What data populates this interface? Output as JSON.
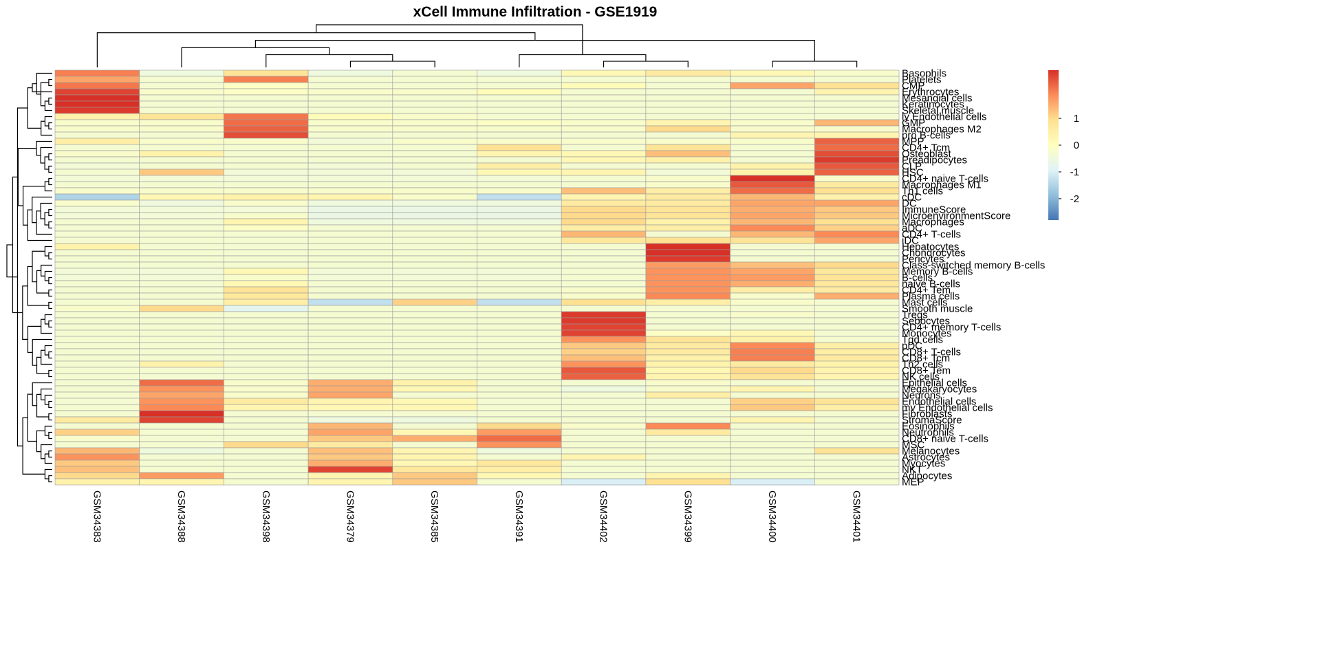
{
  "chart_data": {
    "type": "heatmap",
    "title": "xCell Immune Infiltration - GSE1919",
    "columns": [
      "GSM34383",
      "GSM34388",
      "GSM34398",
      "GSM34379",
      "GSM34385",
      "GSM34391",
      "GSM34402",
      "GSM34399",
      "GSM34400",
      "GSM34401"
    ],
    "rows": [
      "Basophils",
      "Platelets",
      "CMP",
      "Erythrocytes",
      "Mesangial cells",
      "Keratinocytes",
      "Skeletal muscle",
      "ly Endothelial cells",
      "GMP",
      "Macrophages M2",
      "pro B-cells",
      "MPP",
      "CD4+ Tcm",
      "Osteoblast",
      "Preadipocytes",
      "CLP",
      "HSC",
      "CD4+ naive T-cells",
      "Macrophages M1",
      "Th1 cells",
      "cDC",
      "DC",
      "ImmuneScore",
      "MicroenvironmentScore",
      "Macrophages",
      "aDC",
      "CD4+ T-cells",
      "iDC",
      "Hepatocytes",
      "Chondrocytes",
      "Pericytes",
      "Class-switched memory B-cells",
      "Memory B-cells",
      "B-cells",
      "naive B-cells",
      "CD4+ Tem",
      "Plasma cells",
      "Mast cells",
      "Smooth muscle",
      "Tregs",
      "Sebocytes",
      "CD4+ memory T-cells",
      "Monocytes",
      "Tgd cells",
      "pDC",
      "CD8+ T-cells",
      "CD8+ Tcm",
      "Th2 cells",
      "CD8+ Tem",
      "NK cells",
      "Epithelial cells",
      "Megakaryocytes",
      "Neurons",
      "Endothelial cells",
      "mv Endothelial cells",
      "Fibroblasts",
      "StromaScore",
      "Eosinophils",
      "Neutrophils",
      "CD8+ naive T-cells",
      "MSC",
      "Melanocytes",
      "Astrocytes",
      "Myocytes",
      "NKT",
      "Adipocytes",
      "MEP"
    ],
    "values": [
      [
        2.0,
        -0.5,
        0.8,
        -0.5,
        -0.3,
        -0.5,
        0.2,
        0.6,
        0.2,
        -0.2
      ],
      [
        1.6,
        -0.3,
        2.0,
        -0.3,
        -0.3,
        -0.3,
        -0.3,
        -0.3,
        -0.3,
        -0.3
      ],
      [
        2.1,
        -0.3,
        -0.1,
        -0.3,
        -0.3,
        -0.3,
        0.1,
        -0.3,
        1.6,
        0.9
      ],
      [
        2.6,
        -0.2,
        -0.1,
        -0.2,
        -0.2,
        0.1,
        -0.3,
        -0.3,
        -0.3,
        0.3
      ],
      [
        2.8,
        -0.3,
        -0.3,
        -0.3,
        -0.3,
        -0.3,
        -0.3,
        -0.3,
        -0.3,
        -0.3
      ],
      [
        2.8,
        -0.3,
        -0.3,
        -0.3,
        -0.3,
        -0.3,
        -0.3,
        -0.3,
        -0.3,
        -0.3
      ],
      [
        2.7,
        -0.3,
        -0.3,
        -0.3,
        -0.3,
        -0.3,
        -0.3,
        -0.3,
        -0.3,
        -0.3
      ],
      [
        0.4,
        0.8,
        2.1,
        0.1,
        -0.2,
        -0.3,
        -0.3,
        -0.3,
        -0.3,
        -0.3
      ],
      [
        -0.2,
        -0.2,
        2.2,
        -0.2,
        -0.2,
        -0.1,
        -0.2,
        0.3,
        -0.2,
        1.4
      ],
      [
        -0.2,
        -0.2,
        2.3,
        -0.2,
        -0.2,
        -0.2,
        -0.2,
        1.0,
        -0.2,
        -0.2
      ],
      [
        -0.3,
        -0.3,
        2.5,
        -0.3,
        -0.3,
        -0.3,
        -0.3,
        -0.3,
        0.3,
        0.3
      ],
      [
        0.5,
        -0.2,
        -0.2,
        -0.4,
        -0.2,
        -0.2,
        -0.2,
        -0.2,
        -0.2,
        2.3
      ],
      [
        -0.3,
        -0.3,
        -0.3,
        -0.3,
        -0.3,
        0.9,
        -0.3,
        0.8,
        -0.3,
        2.2
      ],
      [
        -0.2,
        0.4,
        -0.3,
        -0.3,
        -0.3,
        0.3,
        0.2,
        1.3,
        -0.3,
        2.5
      ],
      [
        -0.3,
        -0.3,
        -0.3,
        -0.3,
        -0.3,
        -0.3,
        0.2,
        0.4,
        -0.3,
        2.7
      ],
      [
        -0.4,
        -0.3,
        -0.3,
        -0.4,
        -0.3,
        0.5,
        -0.3,
        -0.3,
        0.4,
        2.4
      ],
      [
        -0.3,
        1.2,
        -0.4,
        -0.4,
        -0.4,
        0.2,
        0.3,
        -0.4,
        0.4,
        2.3
      ],
      [
        -0.4,
        -0.4,
        -0.4,
        -0.4,
        -0.4,
        -0.4,
        -0.3,
        -0.2,
        2.8,
        -0.2
      ],
      [
        -0.3,
        -0.3,
        -0.3,
        -0.3,
        -0.3,
        -0.3,
        -0.3,
        -0.2,
        2.4,
        0.6
      ],
      [
        -0.2,
        -0.2,
        -0.2,
        -0.2,
        -0.2,
        -0.2,
        1.3,
        0.5,
        2.2,
        0.9
      ],
      [
        -1.5,
        0.2,
        0.4,
        0.3,
        -0.2,
        -1.3,
        0.3,
        0.6,
        1.4,
        0.4
      ],
      [
        -0.2,
        -0.5,
        -0.2,
        -0.5,
        -0.5,
        -0.5,
        0.6,
        0.6,
        1.6,
        1.6
      ],
      [
        -0.4,
        -0.4,
        -0.4,
        -0.6,
        -0.6,
        -0.6,
        1.0,
        0.8,
        1.5,
        1.2
      ],
      [
        -0.4,
        -0.4,
        -0.2,
        -0.6,
        -0.6,
        -0.6,
        1.0,
        0.8,
        1.6,
        1.2
      ],
      [
        -0.3,
        -0.3,
        0.3,
        -0.5,
        -0.5,
        -0.5,
        1.0,
        0.4,
        1.4,
        0.9
      ],
      [
        -0.3,
        -0.3,
        -0.1,
        -0.3,
        -0.3,
        -0.3,
        0.5,
        0.5,
        1.9,
        1.1
      ],
      [
        -0.3,
        -0.3,
        -0.3,
        -0.3,
        -0.3,
        -0.3,
        1.4,
        -0.3,
        1.4,
        1.9
      ],
      [
        -0.3,
        -0.3,
        -0.3,
        -0.3,
        -0.3,
        -0.3,
        0.7,
        0.9,
        0.8,
        1.6
      ],
      [
        0.4,
        -0.3,
        -0.3,
        -0.3,
        -0.3,
        -0.3,
        -0.3,
        2.8,
        -0.3,
        -0.3
      ],
      [
        -0.3,
        -0.3,
        -0.3,
        -0.3,
        -0.3,
        -0.3,
        -0.3,
        2.8,
        -0.3,
        -0.3
      ],
      [
        -0.3,
        -0.3,
        -0.3,
        -0.3,
        -0.3,
        -0.3,
        -0.3,
        2.7,
        -0.3,
        -0.3
      ],
      [
        -0.3,
        -0.3,
        -0.3,
        -0.3,
        -0.3,
        -0.3,
        -0.3,
        1.7,
        1.3,
        1.0
      ],
      [
        -0.4,
        -0.4,
        0.2,
        -0.4,
        -0.4,
        -0.4,
        -0.3,
        1.8,
        1.6,
        0.7
      ],
      [
        -0.4,
        -0.4,
        -0.2,
        -0.4,
        -0.4,
        -0.4,
        -0.3,
        1.8,
        1.7,
        0.8
      ],
      [
        -0.3,
        -0.3,
        0.2,
        -0.3,
        -0.3,
        -0.3,
        -0.3,
        1.8,
        1.5,
        0.7
      ],
      [
        -0.3,
        -0.3,
        0.8,
        -0.3,
        -0.3,
        -0.3,
        -0.2,
        1.8,
        0.5,
        0.6
      ],
      [
        -0.3,
        -0.3,
        0.7,
        -0.3,
        -0.3,
        -0.3,
        -0.2,
        1.9,
        -0.2,
        1.5
      ],
      [
        -0.3,
        -0.3,
        0.5,
        -1.3,
        1.1,
        -1.3,
        0.9,
        0.5,
        -0.2,
        -0.3
      ],
      [
        -0.2,
        1.0,
        -0.8,
        -0.3,
        -0.3,
        -0.3,
        -0.3,
        -0.3,
        -0.3,
        -0.3
      ],
      [
        -0.3,
        -0.3,
        -0.3,
        -0.3,
        -0.3,
        -0.3,
        2.7,
        -0.3,
        -0.2,
        -0.3
      ],
      [
        -0.3,
        -0.3,
        -0.3,
        -0.3,
        -0.3,
        -0.3,
        2.7,
        -0.3,
        -0.3,
        -0.3
      ],
      [
        -0.3,
        -0.3,
        -0.3,
        -0.3,
        -0.3,
        -0.3,
        2.6,
        -0.3,
        -0.3,
        -0.3
      ],
      [
        -0.3,
        -0.3,
        -0.3,
        -0.3,
        -0.3,
        -0.3,
        2.6,
        -0.1,
        0.2,
        -0.3
      ],
      [
        -0.3,
        -0.3,
        -0.3,
        -0.3,
        -0.3,
        -0.3,
        1.8,
        0.8,
        0.4,
        -0.3
      ],
      [
        -0.3,
        -0.3,
        -0.3,
        -0.3,
        -0.3,
        -0.3,
        1.2,
        0.6,
        1.9,
        0.5
      ],
      [
        -0.3,
        -0.3,
        -0.3,
        -0.3,
        -0.3,
        -0.3,
        1.1,
        0.6,
        2.0,
        0.5
      ],
      [
        -0.3,
        -0.3,
        -0.3,
        -0.3,
        -0.3,
        -0.3,
        1.3,
        0.4,
        2.0,
        0.6
      ],
      [
        -0.3,
        0.4,
        -0.3,
        -0.3,
        -0.3,
        -0.3,
        1.8,
        0.4,
        0.6,
        0.4
      ],
      [
        -0.3,
        -0.3,
        -0.3,
        -0.3,
        -0.3,
        -0.3,
        2.4,
        0.2,
        1.0,
        0.3
      ],
      [
        -0.3,
        -0.3,
        -0.3,
        -0.3,
        -0.3,
        -0.3,
        2.3,
        0.3,
        0.8,
        0.3
      ],
      [
        -0.3,
        2.2,
        -0.2,
        1.5,
        0.4,
        -0.3,
        -0.3,
        -0.2,
        -0.3,
        -0.3
      ],
      [
        -0.3,
        1.8,
        -0.2,
        1.5,
        0.2,
        -0.3,
        -0.5,
        -0.2,
        0.3,
        -0.3
      ],
      [
        -0.3,
        1.6,
        -0.2,
        1.6,
        -0.3,
        -0.3,
        -0.3,
        0.5,
        -0.3,
        -0.3
      ],
      [
        -0.3,
        1.8,
        0.6,
        0.3,
        0.2,
        -0.3,
        -0.3,
        -0.3,
        1.1,
        0.8
      ],
      [
        -0.3,
        1.9,
        0.3,
        0.2,
        0.2,
        -0.3,
        -0.3,
        -0.3,
        1.2,
        0.5
      ],
      [
        -0.3,
        2.8,
        -0.3,
        -0.3,
        -0.3,
        -0.3,
        -0.3,
        -0.3,
        -0.3,
        -0.3
      ],
      [
        0.6,
        2.6,
        -0.3,
        -0.5,
        -0.5,
        -0.3,
        -0.3,
        -0.3,
        0.3,
        -0.3
      ],
      [
        -0.3,
        -0.3,
        -0.3,
        1.4,
        -0.3,
        1.0,
        -0.2,
        1.9,
        -0.3,
        -0.3
      ],
      [
        1.1,
        -0.3,
        -0.3,
        1.6,
        0.2,
        1.7,
        -0.3,
        0.6,
        -0.3,
        -0.3
      ],
      [
        -0.2,
        -0.3,
        -0.3,
        1.2,
        1.5,
        2.2,
        -0.3,
        -0.3,
        -0.3,
        -0.3
      ],
      [
        -0.3,
        -0.3,
        1.0,
        0.6,
        -0.3,
        1.8,
        -0.3,
        -0.3,
        -0.3,
        -0.3
      ],
      [
        1.4,
        -0.5,
        -0.3,
        1.3,
        0.3,
        -0.5,
        -0.3,
        -0.3,
        -0.3,
        0.8
      ],
      [
        1.8,
        -0.3,
        -0.3,
        1.2,
        0.3,
        -0.3,
        0.3,
        -0.3,
        -0.3,
        -0.3
      ],
      [
        1.2,
        -0.3,
        -0.3,
        1.5,
        0.2,
        0.7,
        -0.3,
        -0.3,
        -0.3,
        -0.3
      ],
      [
        1.3,
        -0.3,
        -0.3,
        2.6,
        0.7,
        0.5,
        -0.3,
        -0.3,
        -0.3,
        -0.3
      ],
      [
        1.0,
        1.7,
        -0.3,
        0.3,
        1.2,
        0.2,
        -0.3,
        0.3,
        -0.3,
        -0.3
      ],
      [
        0.4,
        0.3,
        -0.3,
        0.3,
        1.2,
        -0.3,
        -1.0,
        0.9,
        -1.0,
        -0.3
      ]
    ],
    "legend": {
      "ticks": [
        1,
        0,
        -1,
        -2
      ],
      "tick_labels": [
        "1",
        "0",
        "-1",
        "-2"
      ],
      "range": [
        -2.8,
        2.8
      ],
      "placement": "top-right"
    },
    "col_tree": [
      [
        3,
        4
      ],
      [
        2,
        -1
      ],
      [
        8,
        9
      ],
      [
        1,
        -2
      ],
      [
        -4,
        -3
      ],
      [
        6,
        7
      ],
      [
        -6,
        5
      ],
      [
        0,
        -5
      ],
      [
        -8,
        -7
      ]
    ],
    "row_tree": [
      [
        4,
        5
      ],
      [
        -1,
        6
      ],
      [
        1,
        2
      ],
      [
        -3,
        -2
      ],
      [
        0,
        -4
      ],
      [
        3,
        -5
      ],
      [
        8,
        9
      ],
      [
        7,
        -7
      ],
      [
        -8,
        10
      ],
      [
        -6,
        -9
      ],
      [
        13,
        14
      ],
      [
        15,
        16
      ],
      [
        -11,
        -12
      ],
      [
        12,
        -13
      ],
      [
        11,
        -14
      ],
      [
        17,
        18
      ],
      [
        -16,
        19
      ],
      [
        22,
        23
      ],
      [
        24,
        25
      ],
      [
        -18,
        -19
      ],
      [
        21,
        -20
      ],
      [
        -21,
        26
      ],
      [
        20,
        -22
      ],
      [
        -23,
        27
      ],
      [
        -17,
        -24
      ],
      [
        -15,
        -25
      ],
      [
        29,
        30
      ],
      [
        28,
        -27
      ],
      [
        33,
        34
      ],
      [
        32,
        -29
      ],
      [
        31,
        -30
      ],
      [
        35,
        36
      ],
      [
        -31,
        -32
      ],
      [
        -28,
        -33
      ],
      [
        37,
        38
      ],
      [
        -34,
        -35
      ],
      [
        40,
        41
      ],
      [
        39,
        -37
      ],
      [
        -38,
        42
      ],
      [
        45,
        46
      ],
      [
        44,
        -40
      ],
      [
        -41,
        47
      ],
      [
        48,
        49
      ],
      [
        -42,
        -43
      ],
      [
        43,
        -44
      ],
      [
        -39,
        -45
      ],
      [
        -36,
        -46
      ],
      [
        -26,
        -47
      ],
      [
        53,
        54
      ],
      [
        52,
        -49
      ],
      [
        51,
        -50
      ],
      [
        55,
        56
      ],
      [
        -51,
        -52
      ],
      [
        50,
        -53
      ],
      [
        58,
        59
      ],
      [
        57,
        -55
      ],
      [
        61,
        62
      ],
      [
        -57,
        63
      ],
      [
        60,
        -58
      ],
      [
        -56,
        -59
      ],
      [
        -54,
        -60
      ],
      [
        65,
        66
      ],
      [
        64,
        -62
      ],
      [
        -61,
        -63
      ],
      [
        -10,
        -64
      ],
      [
        -48,
        -65
      ]
    ]
  }
}
